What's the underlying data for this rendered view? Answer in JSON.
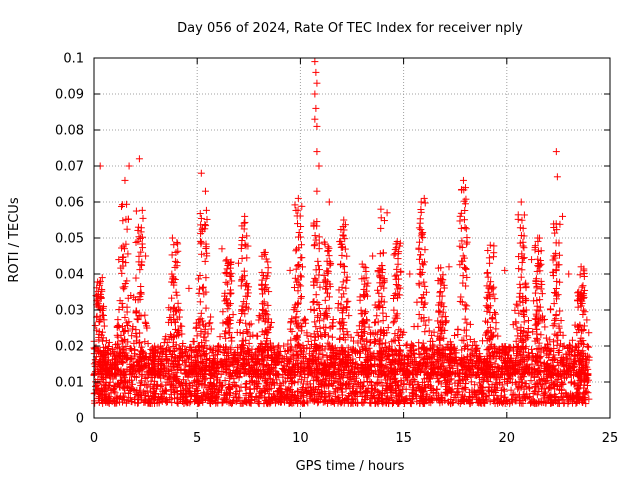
{
  "chart_data": {
    "type": "scatter",
    "title": "Day 056 of 2024, Rate Of TEC Index for receiver nply",
    "xlabel": "GPS time / hours",
    "ylabel": "ROTI / TECUs",
    "xlim": [
      0,
      25
    ],
    "ylim": [
      0,
      0.1
    ],
    "xticks": [
      0,
      5,
      10,
      15,
      20,
      25
    ],
    "yticks": [
      0,
      0.01,
      0.02,
      0.03,
      0.04,
      0.05,
      0.06,
      0.07,
      0.08,
      0.09,
      0.1
    ],
    "xtick_labels": [
      "0",
      "5",
      "10",
      "15",
      "20",
      "25"
    ],
    "ytick_labels": [
      "0",
      "0.01",
      "0.02",
      "0.03",
      "0.04",
      "0.05",
      "0.06",
      "0.07",
      "0.08",
      "0.09",
      "0.1"
    ],
    "grid": true,
    "marker": "+",
    "color": "#ff0000",
    "x_data_range": [
      0,
      24
    ],
    "typical_y_range": [
      0.004,
      0.02
    ],
    "series": [
      {
        "name": "ROTI",
        "points": [
          [
            0.3,
            0.07
          ],
          [
            1.5,
            0.066
          ],
          [
            1.7,
            0.07
          ],
          [
            2.2,
            0.072
          ],
          [
            5.2,
            0.068
          ],
          [
            5.4,
            0.063
          ],
          [
            7.3,
            0.056
          ],
          [
            9.9,
            0.061
          ],
          [
            10.7,
            0.099
          ],
          [
            10.75,
            0.096
          ],
          [
            10.8,
            0.093
          ],
          [
            10.7,
            0.09
          ],
          [
            10.75,
            0.086
          ],
          [
            10.7,
            0.083
          ],
          [
            10.8,
            0.081
          ],
          [
            10.8,
            0.074
          ],
          [
            10.9,
            0.07
          ],
          [
            10.8,
            0.063
          ],
          [
            11.4,
            0.06
          ],
          [
            13.9,
            0.058
          ],
          [
            14.2,
            0.057
          ],
          [
            16.0,
            0.061
          ],
          [
            17.9,
            0.066
          ],
          [
            18.0,
            0.064
          ],
          [
            20.7,
            0.06
          ],
          [
            22.4,
            0.074
          ],
          [
            22.45,
            0.067
          ],
          [
            22.7,
            0.056
          ],
          [
            3.8,
            0.05
          ],
          [
            6.2,
            0.047
          ],
          [
            8.3,
            0.046
          ],
          [
            12.1,
            0.055
          ],
          [
            15.9,
            0.051
          ],
          [
            19.2,
            0.048
          ],
          [
            21.5,
            0.05
          ],
          [
            23.6,
            0.042
          ],
          [
            0.1,
            0.034
          ],
          [
            0.4,
            0.039
          ],
          [
            1.2,
            0.044
          ],
          [
            2.5,
            0.045
          ],
          [
            4.6,
            0.036
          ],
          [
            7.0,
            0.043
          ],
          [
            9.5,
            0.041
          ],
          [
            11.9,
            0.049
          ],
          [
            13.5,
            0.045
          ],
          [
            15.3,
            0.04
          ],
          [
            17.2,
            0.042
          ],
          [
            19.9,
            0.041
          ],
          [
            21.2,
            0.044
          ],
          [
            23.0,
            0.04
          ]
        ]
      }
    ]
  }
}
